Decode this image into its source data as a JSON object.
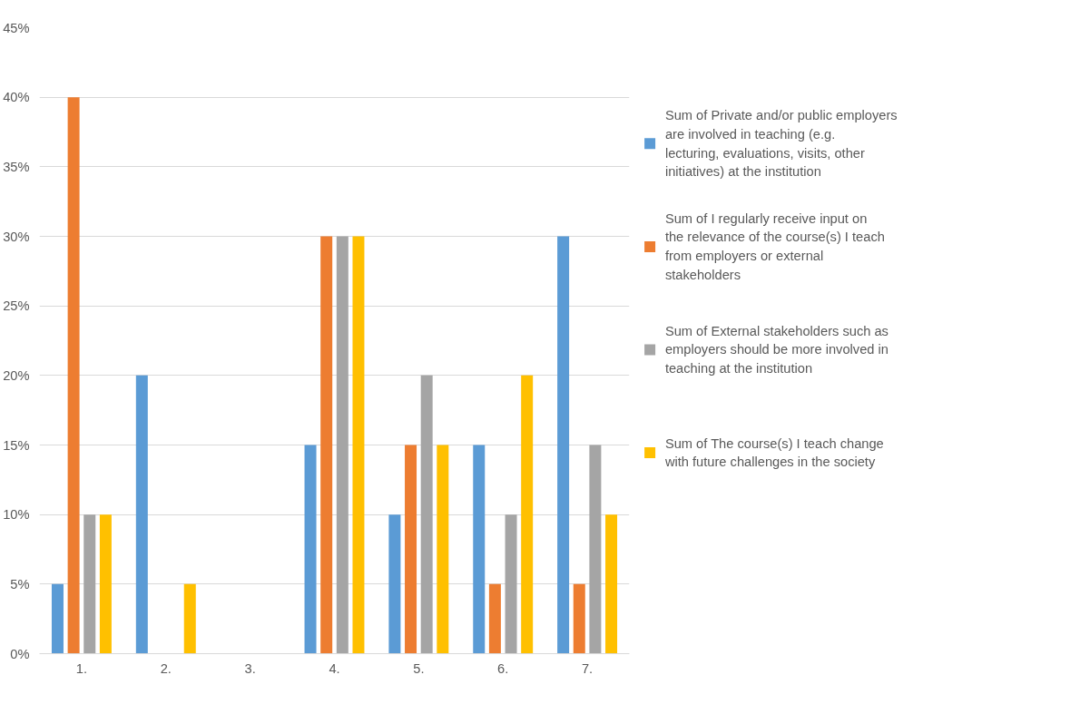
{
  "chart_data": {
    "type": "bar",
    "categories": [
      "1.",
      "2.",
      "3.",
      "4.",
      "5.",
      "6.",
      "7."
    ],
    "series": [
      {
        "name": "Sum of Private and/or public employers are involved in teaching (e.g. lecturing, evaluations, visits, other initiatives) at the institution",
        "color": "#5b9bd5",
        "values": [
          5,
          20,
          0,
          15,
          10,
          15,
          30
        ]
      },
      {
        "name": "Sum of I regularly receive input on the relevance of the course(s) I teach from employers or external stakeholders",
        "color": "#ed7d31",
        "values": [
          40,
          0,
          0,
          30,
          15,
          5,
          5
        ]
      },
      {
        "name": "Sum of External stakeholders such as employers should be more involved in teaching at the institution",
        "color": "#a5a5a5",
        "values": [
          10,
          0,
          0,
          30,
          20,
          10,
          15
        ]
      },
      {
        "name": "Sum of The course(s) I teach change with future challenges in the society",
        "color": "#ffc000",
        "values": [
          10,
          5,
          0,
          30,
          15,
          20,
          10
        ]
      }
    ],
    "ylim": [
      0,
      45
    ],
    "yticks": [
      {
        "value": 0,
        "label": "0%"
      },
      {
        "value": 5,
        "label": "5%"
      },
      {
        "value": 10,
        "label": "10%"
      },
      {
        "value": 15,
        "label": "15%"
      },
      {
        "value": 20,
        "label": "20%"
      },
      {
        "value": 25,
        "label": "25%"
      },
      {
        "value": 30,
        "label": "30%"
      },
      {
        "value": 35,
        "label": "35%"
      },
      {
        "value": 40,
        "label": "40%"
      },
      {
        "value": 45,
        "label": "45%"
      }
    ],
    "grid": "y",
    "legend": "right"
  }
}
